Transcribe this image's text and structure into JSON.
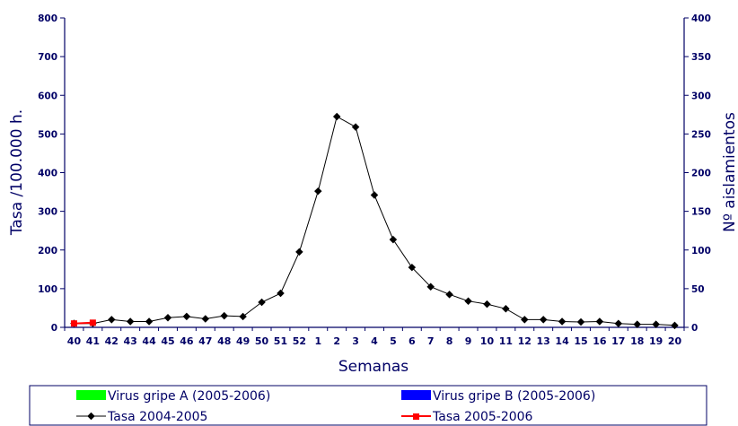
{
  "chart_data": {
    "type": "line",
    "xlabel": "Semanas",
    "ylabel": "Tasa /100.000 h.",
    "y2label": "Nº aislamientos",
    "ylim": [
      0,
      800
    ],
    "y2lim": [
      0,
      400
    ],
    "yticks": [
      "0",
      "100",
      "200",
      "300",
      "400",
      "500",
      "600",
      "700",
      "800"
    ],
    "y2ticks": [
      "0",
      "50",
      "100",
      "150",
      "200",
      "250",
      "300",
      "350",
      "400"
    ],
    "categories": [
      "40",
      "41",
      "42",
      "43",
      "44",
      "45",
      "46",
      "47",
      "48",
      "49",
      "50",
      "51",
      "52",
      "1",
      "2",
      "3",
      "4",
      "5",
      "6",
      "7",
      "8",
      "9",
      "10",
      "11",
      "12",
      "13",
      "14",
      "15",
      "16",
      "17",
      "18",
      "19",
      "20"
    ],
    "series": [
      {
        "name": "Tasa 2004-2005",
        "color": "#000000",
        "marker": "diamond",
        "values": [
          10,
          10,
          20,
          15,
          15,
          25,
          28,
          22,
          30,
          28,
          65,
          88,
          195,
          352,
          545,
          518,
          342,
          227,
          155,
          105,
          85,
          68,
          60,
          48,
          20,
          20,
          15,
          14,
          15,
          10,
          8,
          8,
          5
        ]
      },
      {
        "name": "Tasa 2005-2006",
        "color": "#ff0000",
        "marker": "square",
        "values": [
          10,
          12,
          null,
          null,
          null,
          null,
          null,
          null,
          null,
          null,
          null,
          null,
          null,
          null,
          null,
          null,
          null,
          null,
          null,
          null,
          null,
          null,
          null,
          null,
          null,
          null,
          null,
          null,
          null,
          null,
          null,
          null,
          null
        ]
      }
    ],
    "bar_series": [
      {
        "name": "Virus gripe A (2005-2006)",
        "color": "#00ff00",
        "values": []
      },
      {
        "name": "Virus gripe B (2005-2006)",
        "color": "#0000ff",
        "values": []
      }
    ],
    "legend": {
      "placement": "bottom",
      "items": [
        {
          "label": "Virus gripe A (2005-2006)",
          "kind": "bar",
          "color": "#00ff00"
        },
        {
          "label": "Virus gripe B (2005-2006)",
          "kind": "bar",
          "color": "#0000ff"
        },
        {
          "label": "Tasa 2004-2005",
          "kind": "line",
          "color": "#000000"
        },
        {
          "label": "Tasa 2005-2006",
          "kind": "line",
          "color": "#ff0000"
        }
      ]
    },
    "grid": false
  }
}
